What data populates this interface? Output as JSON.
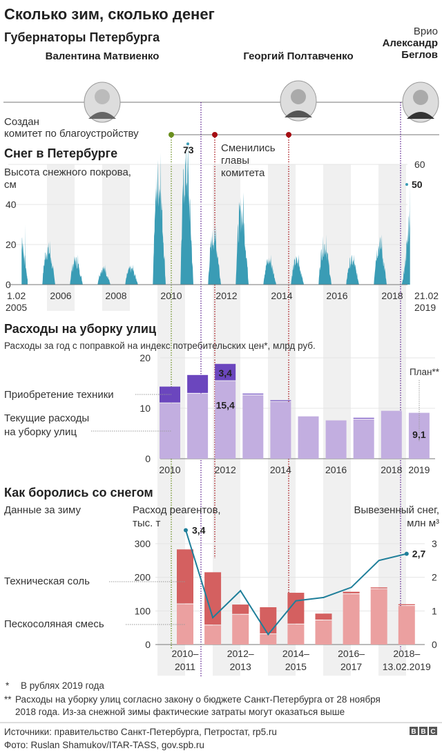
{
  "title": "Сколько зим, сколько денег",
  "governors": {
    "heading": "Губернаторы Петербурга",
    "items": [
      {
        "name": "Валентина Матвиенко"
      },
      {
        "name": "Георгий Полтавченко"
      },
      {
        "prefix": "Врио",
        "name_line1": "Александр",
        "name_line2": "Беглов"
      }
    ]
  },
  "committee": {
    "created_line1": "Создан",
    "created_line2": "комитет по благоустройству",
    "changed_line1": "Сменились",
    "changed_line2": "главы",
    "changed_line3": "комитета"
  },
  "colors": {
    "snow": "#3a9cb5",
    "current": "#c2aee0",
    "tech": "#6b46be",
    "salt": "#d46060",
    "sand_salt": "#eba0a0",
    "line": "#1f7f9a",
    "band": "#f0f0f0",
    "green": "#6a8f1e",
    "red": "#a50d12",
    "purple": "#5b1f8f"
  },
  "chart_data": [
    {
      "type": "area",
      "title": "Снег в Петербурге",
      "ylabel_line1": "Высота снежного покрова,",
      "ylabel_line2": "см",
      "x_start_line1": "1.02",
      "x_start_line2": "2005",
      "x_end_line1": "21.02",
      "x_end_line2": "2019",
      "x_ticks": [
        "2006",
        "2008",
        "2010",
        "2012",
        "2014",
        "2016",
        "2018"
      ],
      "y_ticks_left": [
        "0",
        "20",
        "40"
      ],
      "y_ticks_right": [
        "60"
      ],
      "ylim": [
        0,
        60
      ],
      "winter_peaks": [
        {
          "winter": "2004–2005",
          "peak": 30
        },
        {
          "winter": "2005–2006",
          "peak": 22
        },
        {
          "winter": "2006–2007",
          "peak": 15
        },
        {
          "winter": "2007–2008",
          "peak": 10
        },
        {
          "winter": "2008–2009",
          "peak": 10
        },
        {
          "winter": "2009–2010",
          "peak": 66
        },
        {
          "winter": "2010–2011",
          "peak": 73
        },
        {
          "winter": "2011–2012",
          "peak": 30
        },
        {
          "winter": "2012–2013",
          "peak": 46
        },
        {
          "winter": "2013–2014",
          "peak": 15
        },
        {
          "winter": "2014–2015",
          "peak": 15
        },
        {
          "winter": "2015–2016",
          "peak": 25
        },
        {
          "winter": "2016–2017",
          "peak": 15
        },
        {
          "winter": "2017–2018",
          "peak": 25
        },
        {
          "winter": "2018–2019",
          "peak": 50
        }
      ],
      "annotations": {
        "max": "73",
        "last": "50"
      }
    },
    {
      "type": "bar",
      "title": "Расходы на уборку улиц",
      "subtitle": "Расходы за год с поправкой на индекс потребительских цен*, млрд руб.",
      "categories": [
        "2010",
        "2011",
        "2012",
        "2013",
        "2014",
        "2015",
        "2016",
        "2017",
        "2018",
        "2019"
      ],
      "x_tick_labels": [
        "2010",
        "",
        "2012",
        "",
        "2014",
        "",
        "2016",
        "",
        "2018",
        "2019"
      ],
      "series": [
        {
          "name_line1": "Текущие расходы",
          "name_line2": "на уборку улиц",
          "values": [
            11.0,
            12.9,
            15.4,
            12.6,
            11.3,
            8.4,
            7.6,
            7.8,
            9.5,
            9.1
          ]
        },
        {
          "name": "Приобретение техники",
          "values": [
            3.3,
            3.7,
            3.4,
            0.3,
            0.3,
            0,
            0,
            0.3,
            0,
            0
          ]
        }
      ],
      "y_ticks": [
        "0",
        "10",
        "20"
      ],
      "ylim": [
        0,
        20
      ],
      "labels": {
        "tech_2012": "3,4",
        "current_2012": "15,4",
        "current_2019": "9,1",
        "plan": "План**"
      }
    },
    {
      "type": "bar",
      "title": "Как боролись со снегом",
      "subtitle": "Данные за зиму",
      "ylabel_left_line1": "Расход реагентов,",
      "ylabel_left_line2": "тыс. т",
      "ylabel_right_line1": "Вывезенный снег,",
      "ylabel_right_line2": "млн м³",
      "categories": [
        "2010–2011",
        "2011–2012",
        "2012–2013",
        "2013–2014",
        "2014–2015",
        "2015–2016",
        "2016–2017",
        "2017–2018",
        "2018–13.02.2019"
      ],
      "x_tick_labels": [
        [
          "2010–",
          "2011"
        ],
        [
          "",
          ""
        ],
        [
          "2012–",
          "2013"
        ],
        [
          "",
          ""
        ],
        [
          "2014–",
          "2015"
        ],
        [
          "",
          ""
        ],
        [
          "2016–",
          "2017"
        ],
        [
          "",
          ""
        ],
        [
          "2018–",
          "13.02.2019"
        ]
      ],
      "series": [
        {
          "name": "Пескосоляная смесь",
          "values": [
            120,
            57,
            89,
            31,
            60,
            72,
            150,
            165,
            115
          ]
        },
        {
          "name": "Техническая соль",
          "values": [
            163,
            158,
            30,
            80,
            94,
            20,
            7,
            5,
            5
          ]
        },
        {
          "name": "Вывезенный снег",
          "type": "line",
          "axis": "right",
          "values": [
            3.4,
            0.8,
            1.6,
            0.3,
            1.3,
            1.4,
            1.7,
            2.5,
            2.7
          ]
        }
      ],
      "y_ticks_left": [
        "0",
        "100",
        "200",
        "300"
      ],
      "y_ticks_right": [
        "0",
        "1",
        "2",
        "3"
      ],
      "ylim_left": [
        0,
        300
      ],
      "ylim_right": [
        0,
        3
      ],
      "labels": {
        "first": "3,4",
        "last": "2,7"
      }
    }
  ],
  "footnotes": {
    "note1_mark": "*",
    "note1": "В рублях 2019 года",
    "note2_mark": "**",
    "note2_line1": "Расходы на уборку улиц согласно закону о бюджете Санкт-Петербурга от 28 ноября",
    "note2_line2": "2018 года. Из-за снежной зимы фактические затраты могут оказаться выше"
  },
  "sources": {
    "line1": "Источники: правительство Санкт-Петербурга, Петростат, rp5.ru",
    "line2": "Фото: Ruslan Shamukov/ITAR-TASS, gov.spb.ru",
    "logo": "BBC"
  }
}
